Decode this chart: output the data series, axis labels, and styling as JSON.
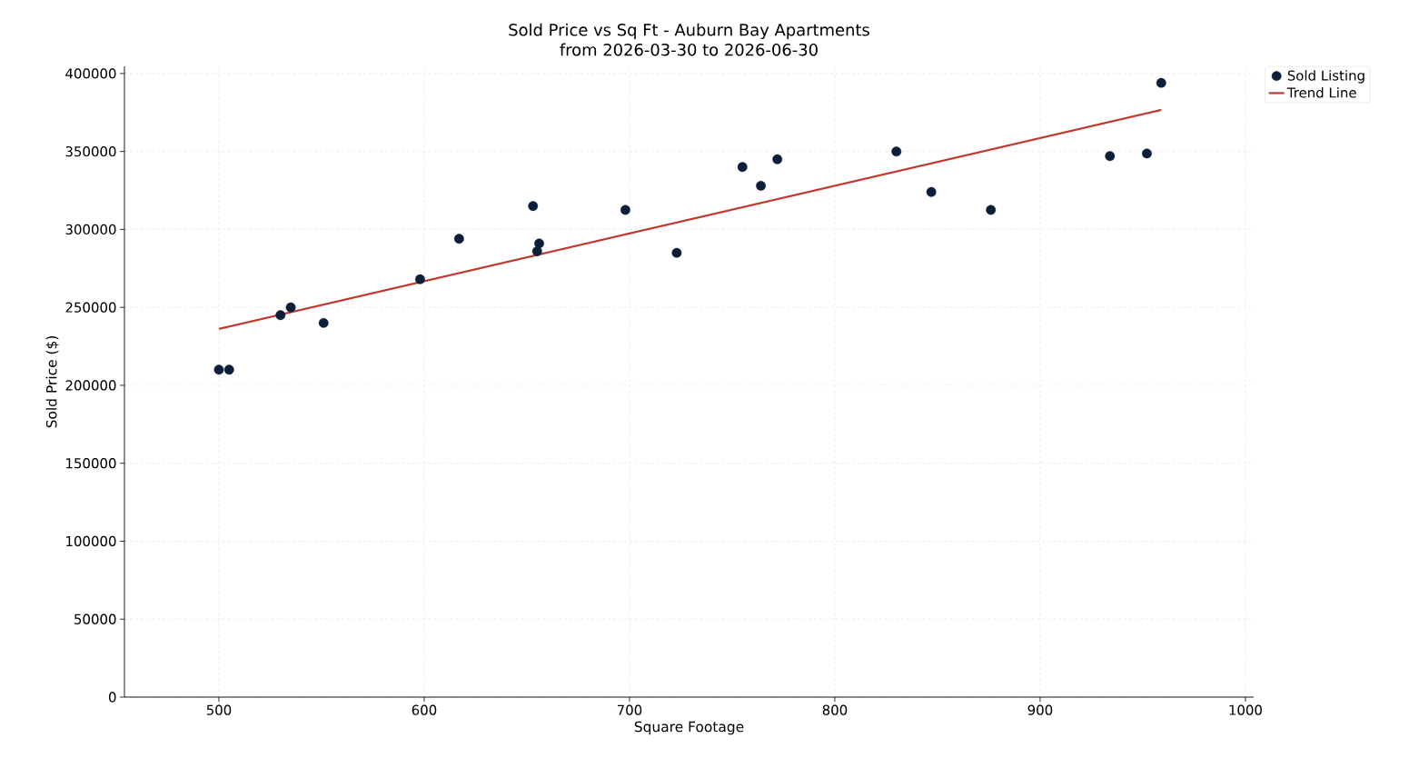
{
  "chart_data": {
    "type": "scatter",
    "title": "Sold Price vs Sq Ft - Auburn Bay Apartments",
    "subtitle": "from 2026-03-30 to 2026-06-30",
    "xlabel": "Square Footage",
    "ylabel": "Sold Price ($)",
    "xlim": [
      454,
      1004
    ],
    "ylim": [
      0,
      404600
    ],
    "xticks": [
      500,
      600,
      700,
      800,
      900,
      1000
    ],
    "yticks": [
      0,
      50000,
      100000,
      150000,
      200000,
      250000,
      300000,
      350000,
      400000
    ],
    "grid": true,
    "legend": "top right",
    "series": [
      {
        "name": "Sold Listing",
        "marker": "circle",
        "color": "#0b1f3a",
        "x": [
          500,
          505,
          530,
          535,
          551,
          598,
          617,
          653,
          655,
          656,
          698,
          723,
          755,
          764,
          772,
          830,
          847,
          876,
          934,
          952,
          959
        ],
        "values": [
          210000,
          210000,
          245000,
          250000,
          240000,
          268000,
          294000,
          315000,
          286000,
          291000,
          312500,
          285000,
          340000,
          328000,
          345000,
          350000,
          324000,
          312500,
          347000,
          348700,
          394000
        ]
      },
      {
        "name": "Trend Line",
        "type": "line",
        "color": "#c0392b",
        "line_style": "solid",
        "marker": "none",
        "x": [
          500,
          959
        ],
        "values": [
          236200,
          376700
        ]
      }
    ]
  }
}
